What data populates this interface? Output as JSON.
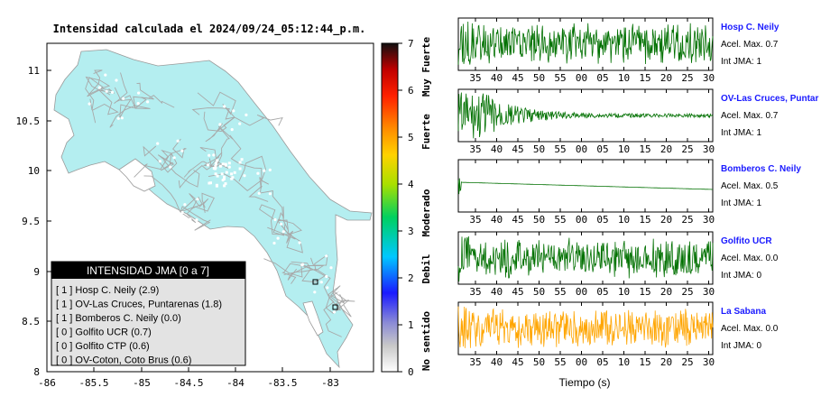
{
  "map": {
    "title": "Intensidad calculada el 2024/09/24_05:12:44_p.m.",
    "x_ticks": [
      "-86",
      "-85.5",
      "-85",
      "-84.5",
      "-84",
      "-83.5",
      "-83"
    ],
    "y_ticks": [
      "11",
      "10.5",
      "10",
      "9.5",
      "9",
      "8.5",
      "8"
    ],
    "land_color": "#b4eef0",
    "colorbar": {
      "ticks": [
        "7",
        "6",
        "5",
        "4",
        "3",
        "2",
        "1",
        "0"
      ],
      "category_labels": [
        "Muy Fuerte",
        "Fuerte",
        "Moderado",
        "Debil",
        "No sentido"
      ]
    },
    "legend": {
      "title": "INTENSIDAD JMA [0 a 7]",
      "rows": [
        "[ 1 ]  Hosp C. Neily (2.9)",
        "[ 1 ]  OV-Las Cruces, Puntarenas (1.8)",
        "[ 1 ]  Bomberos C. Neily (0.0)",
        "[ 0 ]  Golfito UCR (0.7)",
        "[ 0 ]  Golfito CTP (0.6)",
        "[ 0 ]  OV-Coton, Coto Brus (0.6)"
      ]
    }
  },
  "traces": {
    "x_tick_labels": [
      "35",
      "40",
      "45",
      "50",
      "55",
      "00",
      "05",
      "10",
      "15",
      "20",
      "25",
      "30"
    ],
    "x_label": "Tiempo (s)",
    "stations": [
      {
        "name": "Hosp C. Neily",
        "acel": "Acel. Max. 0.7",
        "jma": "Int JMA: 1",
        "color": "#007000",
        "style": "noise"
      },
      {
        "name": "OV-Las Cruces, Puntar",
        "acel": "Acel. Max. 0.7",
        "jma": "Int JMA: 1",
        "color": "#007000",
        "style": "decay"
      },
      {
        "name": "Bomberos C. Neily",
        "acel": "Acel. Max. 0.5",
        "jma": "Int JMA: 1",
        "color": "#007000",
        "style": "flat"
      },
      {
        "name": "Golfito UCR",
        "acel": "Acel. Max. 0.0",
        "jma": "Int JMA: 0",
        "color": "#007000",
        "style": "noise"
      },
      {
        "name": "La Sabana",
        "acel": "Acel. Max. 0.0",
        "jma": "Int JMA: 0",
        "color": "#ffa500",
        "style": "noise"
      }
    ]
  }
}
